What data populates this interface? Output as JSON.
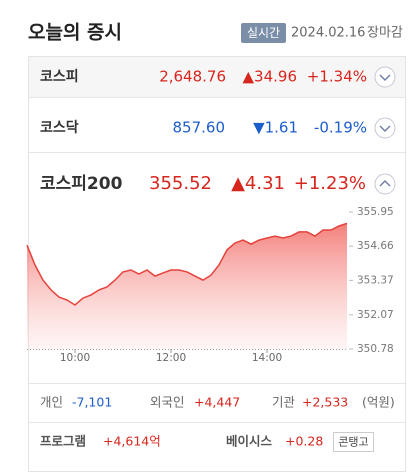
{
  "header": {
    "title": "오늘의 증시",
    "badge": "실시간",
    "date": "2024.02.16",
    "status": "장마감"
  },
  "indices": [
    {
      "name": "코스피",
      "value": "2,648.76",
      "change": "▲34.96",
      "rate": "+1.34%",
      "color": "#d7261e"
    },
    {
      "name": "코스닥",
      "value": "857.60",
      "change": "▼1.61",
      "rate": "-0.19%",
      "color": "#1c5dcc"
    },
    {
      "name": "코스피200",
      "value": "355.52",
      "change": "▲4.31",
      "rate": "+1.23%",
      "color": "#d7261e"
    }
  ],
  "chart_data": {
    "type": "area",
    "color": "#e5423b",
    "x": [
      "09:00",
      "09:10",
      "09:20",
      "09:30",
      "09:40",
      "09:50",
      "10:00",
      "10:10",
      "10:20",
      "10:30",
      "10:40",
      "10:50",
      "11:00",
      "11:10",
      "11:20",
      "11:30",
      "11:40",
      "11:50",
      "12:00",
      "12:10",
      "12:20",
      "12:30",
      "12:40",
      "12:50",
      "13:00",
      "13:10",
      "13:20",
      "13:30",
      "13:40",
      "13:50",
      "14:00",
      "14:10",
      "14:20",
      "14:30",
      "14:40",
      "14:50",
      "15:00",
      "15:10",
      "15:20",
      "15:30",
      "15:40"
    ],
    "values": [
      354.7,
      353.95,
      353.38,
      353.01,
      352.74,
      352.63,
      352.44,
      352.7,
      352.82,
      353.01,
      353.12,
      353.38,
      353.69,
      353.76,
      353.61,
      353.76,
      353.53,
      353.65,
      353.76,
      353.76,
      353.69,
      353.53,
      353.38,
      353.57,
      353.95,
      354.52,
      354.78,
      354.89,
      354.74,
      354.89,
      354.97,
      355.04,
      354.97,
      355.04,
      355.2,
      355.2,
      355.04,
      355.27,
      355.27,
      355.42,
      355.52
    ],
    "xlim": [
      "09:00",
      "15:40"
    ],
    "xticks": [
      "10:00",
      "12:00",
      "14:00"
    ],
    "ylim": [
      350.78,
      355.95
    ],
    "yticks": [
      355.95,
      354.66,
      353.37,
      352.07,
      350.78
    ]
  },
  "investors": {
    "items": [
      {
        "label": "개인",
        "value": "-7,101",
        "color": "#1c5dcc"
      },
      {
        "label": "외국인",
        "value": "+4,447",
        "color": "#d7261e"
      },
      {
        "label": "기관",
        "value": "+2,533",
        "color": "#d7261e"
      }
    ],
    "unit": "(억원)"
  },
  "program": {
    "label": "프로그램",
    "value": "+4,614억",
    "color": "#d7261e"
  },
  "basis": {
    "label": "베이시스",
    "value": "+0.28",
    "color": "#d7261e",
    "badge": "콘탱고"
  }
}
